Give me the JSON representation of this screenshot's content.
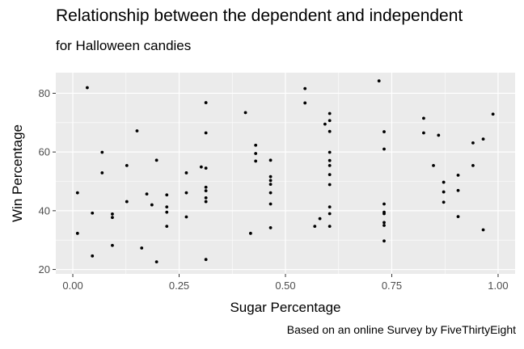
{
  "chart_data": {
    "type": "scatter",
    "title": "Relationship between the dependent and independent",
    "subtitle": "for Halloween candies",
    "caption": "Based on an online Survey by FiveThirtyEight",
    "xlabel": "Sugar Percentage",
    "ylabel": "Win Percentage",
    "xlim": [
      -0.04,
      1.04
    ],
    "ylim": [
      18.5,
      87
    ],
    "x_ticks": [
      0.0,
      0.25,
      0.5,
      0.75,
      1.0
    ],
    "x_tick_labels": [
      "0.00",
      "0.25",
      "0.50",
      "0.75",
      "1.00"
    ],
    "y_ticks": [
      20,
      40,
      60,
      80
    ],
    "y_tick_labels": [
      "20",
      "40",
      "60",
      "80"
    ],
    "grid": true,
    "colors": {
      "panel": "#ebebeb",
      "grid": "#ffffff",
      "point": "#000000",
      "tick": "#4d4d4d"
    },
    "points": [
      {
        "x": 0.011,
        "y": 32.3
      },
      {
        "x": 0.011,
        "y": 46.1
      },
      {
        "x": 0.034,
        "y": 81.9
      },
      {
        "x": 0.046,
        "y": 39.2
      },
      {
        "x": 0.046,
        "y": 24.6
      },
      {
        "x": 0.069,
        "y": 59.9
      },
      {
        "x": 0.069,
        "y": 52.9
      },
      {
        "x": 0.093,
        "y": 38.9
      },
      {
        "x": 0.093,
        "y": 37.7
      },
      {
        "x": 0.093,
        "y": 28.2
      },
      {
        "x": 0.127,
        "y": 55.4
      },
      {
        "x": 0.127,
        "y": 43.1
      },
      {
        "x": 0.151,
        "y": 67.2
      },
      {
        "x": 0.162,
        "y": 27.3
      },
      {
        "x": 0.174,
        "y": 45.7
      },
      {
        "x": 0.186,
        "y": 42.0
      },
      {
        "x": 0.197,
        "y": 57.2
      },
      {
        "x": 0.197,
        "y": 22.6
      },
      {
        "x": 0.221,
        "y": 45.4
      },
      {
        "x": 0.221,
        "y": 41.3
      },
      {
        "x": 0.221,
        "y": 39.5
      },
      {
        "x": 0.221,
        "y": 34.7
      },
      {
        "x": 0.267,
        "y": 52.9
      },
      {
        "x": 0.267,
        "y": 46.1
      },
      {
        "x": 0.267,
        "y": 37.9
      },
      {
        "x": 0.302,
        "y": 54.9
      },
      {
        "x": 0.313,
        "y": 76.8
      },
      {
        "x": 0.313,
        "y": 66.5
      },
      {
        "x": 0.313,
        "y": 54.5
      },
      {
        "x": 0.313,
        "y": 48.0
      },
      {
        "x": 0.313,
        "y": 46.8
      },
      {
        "x": 0.313,
        "y": 44.4
      },
      {
        "x": 0.313,
        "y": 43.1
      },
      {
        "x": 0.313,
        "y": 23.4
      },
      {
        "x": 0.406,
        "y": 73.4
      },
      {
        "x": 0.418,
        "y": 32.3
      },
      {
        "x": 0.43,
        "y": 62.3
      },
      {
        "x": 0.43,
        "y": 59.5
      },
      {
        "x": 0.43,
        "y": 56.9
      },
      {
        "x": 0.465,
        "y": 57.2
      },
      {
        "x": 0.465,
        "y": 51.6
      },
      {
        "x": 0.465,
        "y": 50.3
      },
      {
        "x": 0.465,
        "y": 49.0
      },
      {
        "x": 0.465,
        "y": 46.1
      },
      {
        "x": 0.465,
        "y": 42.3
      },
      {
        "x": 0.465,
        "y": 34.2
      },
      {
        "x": 0.546,
        "y": 81.6
      },
      {
        "x": 0.546,
        "y": 76.7
      },
      {
        "x": 0.569,
        "y": 34.7
      },
      {
        "x": 0.581,
        "y": 37.3
      },
      {
        "x": 0.593,
        "y": 69.5
      },
      {
        "x": 0.604,
        "y": 73.1
      },
      {
        "x": 0.604,
        "y": 70.7
      },
      {
        "x": 0.604,
        "y": 67.0
      },
      {
        "x": 0.604,
        "y": 59.9
      },
      {
        "x": 0.604,
        "y": 57.1
      },
      {
        "x": 0.604,
        "y": 55.4
      },
      {
        "x": 0.604,
        "y": 52.3
      },
      {
        "x": 0.604,
        "y": 48.9
      },
      {
        "x": 0.604,
        "y": 41.3
      },
      {
        "x": 0.604,
        "y": 39.0
      },
      {
        "x": 0.604,
        "y": 34.7
      },
      {
        "x": 0.72,
        "y": 84.2
      },
      {
        "x": 0.732,
        "y": 66.9
      },
      {
        "x": 0.732,
        "y": 61.0
      },
      {
        "x": 0.732,
        "y": 42.3
      },
      {
        "x": 0.732,
        "y": 39.5
      },
      {
        "x": 0.732,
        "y": 39.0
      },
      {
        "x": 0.732,
        "y": 36.0
      },
      {
        "x": 0.732,
        "y": 35.0
      },
      {
        "x": 0.732,
        "y": 29.7
      },
      {
        "x": 0.825,
        "y": 71.5
      },
      {
        "x": 0.825,
        "y": 66.5
      },
      {
        "x": 0.848,
        "y": 55.4
      },
      {
        "x": 0.86,
        "y": 65.7
      },
      {
        "x": 0.872,
        "y": 49.7
      },
      {
        "x": 0.872,
        "y": 46.4
      },
      {
        "x": 0.872,
        "y": 42.9
      },
      {
        "x": 0.906,
        "y": 52.1
      },
      {
        "x": 0.906,
        "y": 46.9
      },
      {
        "x": 0.906,
        "y": 38.0
      },
      {
        "x": 0.941,
        "y": 63.1
      },
      {
        "x": 0.941,
        "y": 55.4
      },
      {
        "x": 0.965,
        "y": 64.4
      },
      {
        "x": 0.965,
        "y": 33.5
      },
      {
        "x": 0.988,
        "y": 72.9
      }
    ]
  }
}
